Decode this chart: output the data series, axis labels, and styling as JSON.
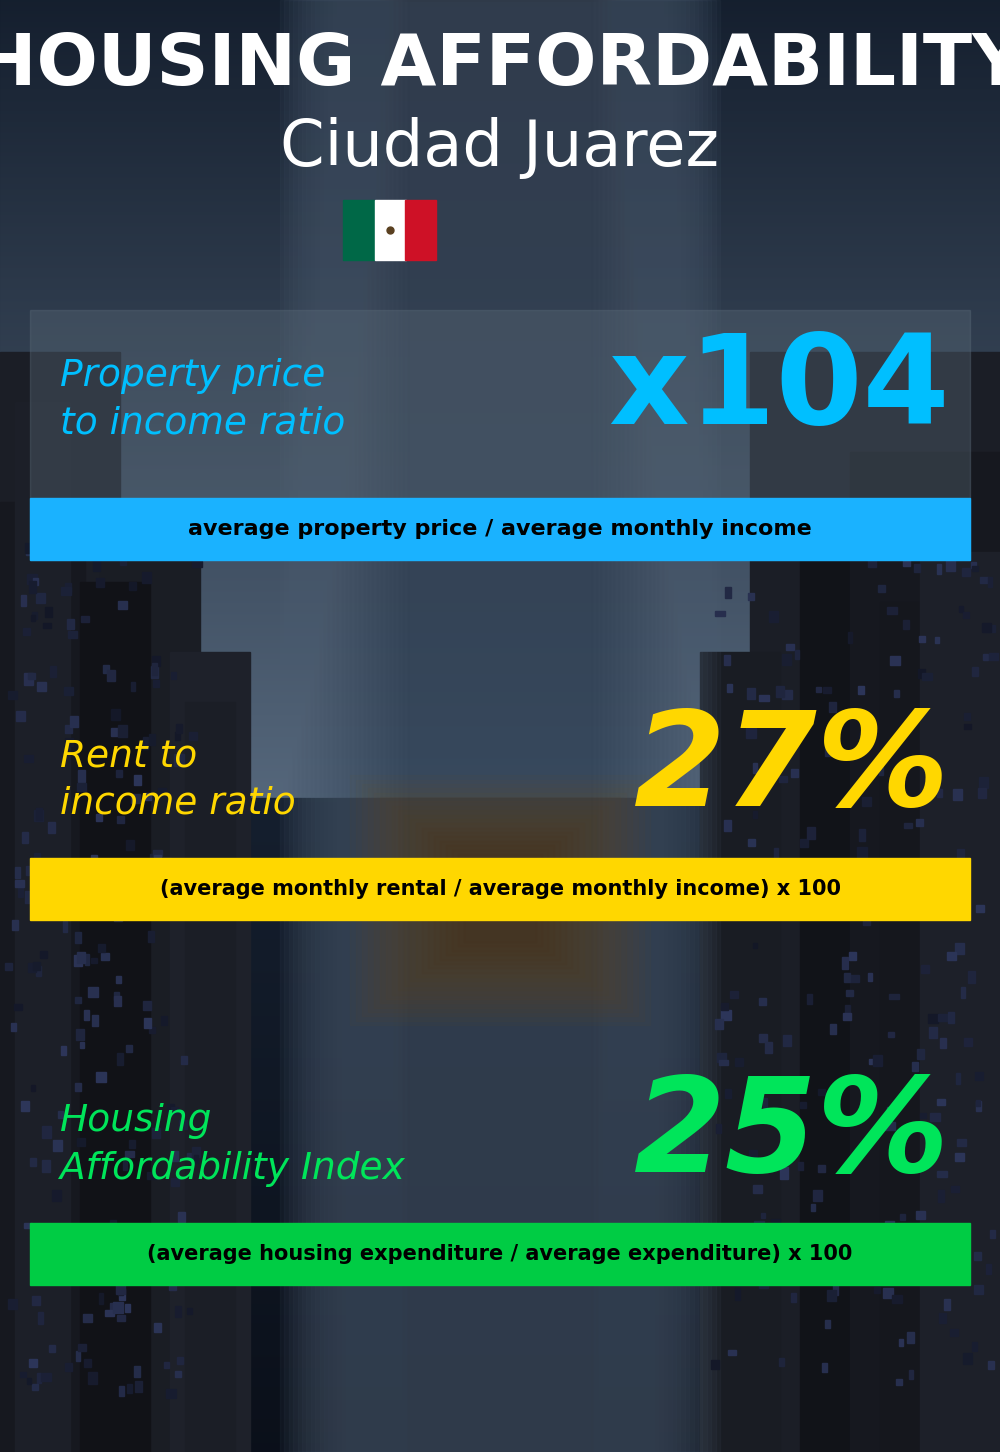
{
  "title_line1": "HOUSING AFFORDABILITY",
  "title_line2": "Ciudad Juarez",
  "bg_color": "#0a1520",
  "section1_label": "Property price\nto income ratio",
  "section1_value": "x104",
  "section1_label_color": "#00bfff",
  "section1_value_color": "#00bfff",
  "section1_band_text": "average property price / average monthly income",
  "section1_band_color": "#1ab2ff",
  "section1_band_text_color": "#000000",
  "section1_overlay_color": "#4a5a6a",
  "section1_overlay_alpha": 0.45,
  "section2_label": "Rent to\nincome ratio",
  "section2_value": "27%",
  "section2_label_color": "#ffd700",
  "section2_value_color": "#ffd700",
  "section2_band_text": "(average monthly rental / average monthly income) x 100",
  "section2_band_color": "#ffd700",
  "section2_band_text_color": "#000000",
  "section3_label": "Housing\nAffordability Index",
  "section3_value": "25%",
  "section3_label_color": "#00e55a",
  "section3_value_color": "#00e55a",
  "section3_band_text": "(average housing expenditure / average expenditure) x 100",
  "section3_band_color": "#00cc44",
  "section3_band_text_color": "#000000",
  "title_color": "#ffffff",
  "subtitle_color": "#ffffff",
  "flag_green": "#006847",
  "flag_white": "#ffffff",
  "flag_red": "#ce1126",
  "fig_width": 10.0,
  "fig_height": 14.52,
  "dpi": 100
}
